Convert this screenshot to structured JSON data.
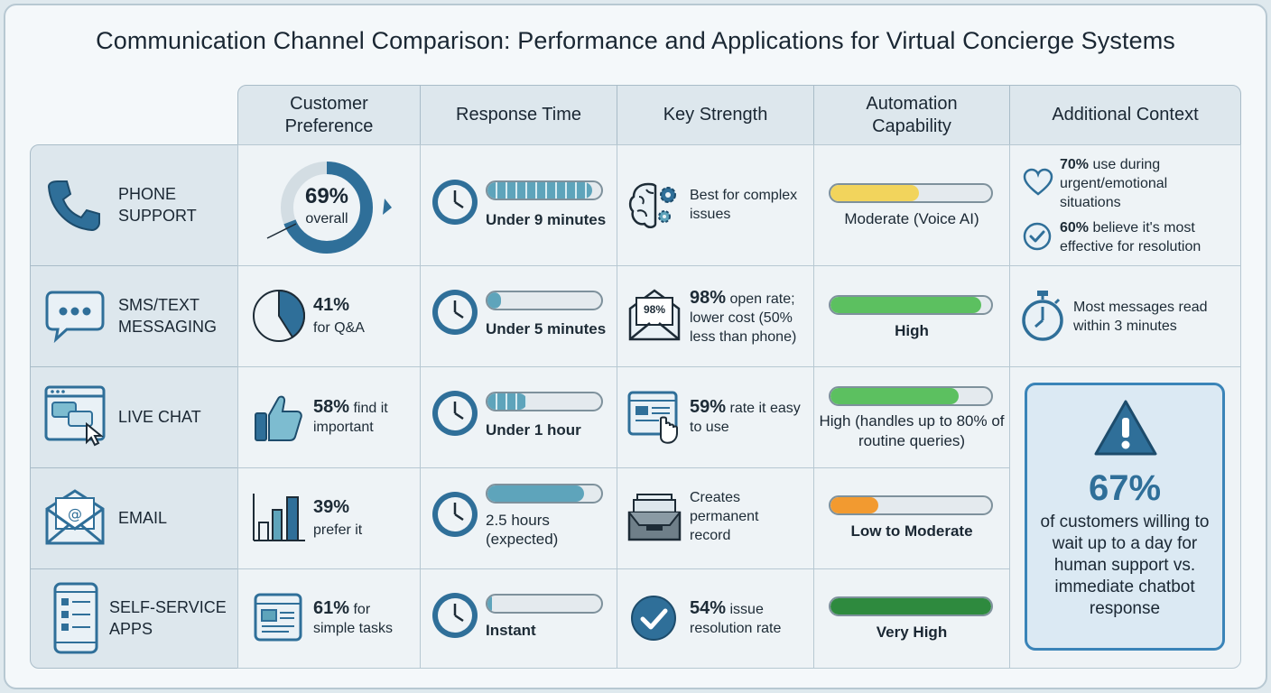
{
  "title": "Communication Channel Comparison: Performance and Applications for Virtual Concierge Systems",
  "headers": {
    "customer_preference": "Customer Preference",
    "response_time": "Response Time",
    "key_strength": "Key Strength",
    "automation": "Automation Capability",
    "context": "Additional Context"
  },
  "rows": [
    {
      "channel": "PHONE SUPPORT",
      "icon": "phone-icon",
      "pref_value": "69%",
      "pref_text": "overall",
      "pref_fraction": 0.69,
      "response": "Under 9 minutes",
      "strength_text": "Best for complex issues",
      "automation": "Moderate (Voice AI)",
      "automation_level": 0.55,
      "automation_color": "#f2d45c"
    },
    {
      "channel": "SMS/TEXT MESSAGING",
      "icon": "chat-bubble-icon",
      "pref_value": "41%",
      "pref_text": "for Q&A",
      "pref_fraction": 0.41,
      "response": "Under 5 minutes",
      "strength_badge": "98%",
      "strength_value": "98%",
      "strength_text": "open rate; lower cost (50% less than phone)",
      "automation": "High",
      "automation_level": 0.94,
      "automation_color": "#5cc060"
    },
    {
      "channel": "LIVE CHAT",
      "icon": "live-chat-icon",
      "pref_value": "58%",
      "pref_text": "find it important",
      "response": "Under 1 hour",
      "strength_value": "59%",
      "strength_text": "rate it easy to use",
      "automation": "High (handles up to 80% of routine queries)",
      "automation_level": 0.8,
      "automation_color": "#5cc060"
    },
    {
      "channel": "EMAIL",
      "icon": "envelope-icon",
      "pref_value": "39%",
      "pref_text": "prefer it",
      "response": "2.5 hours (expected)",
      "strength_text": "Creates permanent record",
      "automation": "Low to Moderate",
      "automation_level": 0.3,
      "automation_color": "#f29a30"
    },
    {
      "channel": "SELF-SERVICE APPS",
      "icon": "mobile-app-icon",
      "pref_value": "61%",
      "pref_text": "for simple tasks",
      "response": "Instant",
      "strength_value": "54%",
      "strength_text": "issue resolution rate",
      "automation": "Very High",
      "automation_level": 1.0,
      "automation_color": "#2e8a3e"
    }
  ],
  "context": {
    "phone_1_value": "70%",
    "phone_1_text": "use during urgent/emotional situations",
    "phone_2_value": "60%",
    "phone_2_text": "believe it's most effective for resolution",
    "sms_text": "Most messages read within 3 minutes",
    "callout_value": "67%",
    "callout_text": "of customers willing to wait up to a day for human support vs. immediate chatbot response"
  },
  "colors": {
    "accent_blue": "#2f6f99",
    "teal": "#5ea4bb",
    "callout_border": "#3a84b8"
  }
}
